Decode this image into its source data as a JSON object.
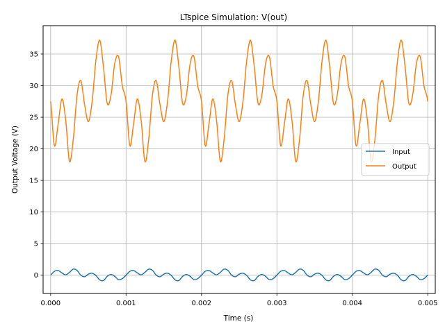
{
  "chart_data": {
    "type": "line",
    "title": "LTspice Simulation: V(out)",
    "xlabel": "Time (s)",
    "ylabel": "Output Voltage (V)",
    "xlim": [
      -0.0001,
      0.0051
    ],
    "ylim": [
      -2.9,
      39.5
    ],
    "xticks": [
      0.0,
      0.001,
      0.002,
      0.003,
      0.004,
      0.005
    ],
    "xtick_labels": [
      "0.000",
      "0.001",
      "0.002",
      "0.003",
      "0.004",
      "0.005"
    ],
    "yticks": [
      0,
      5,
      10,
      15,
      20,
      25,
      30,
      35
    ],
    "ytick_labels": [
      "0",
      "5",
      "10",
      "15",
      "20",
      "25",
      "30",
      "35"
    ],
    "grid": true,
    "legend_position": "center-right",
    "series": [
      {
        "name": "Input",
        "color": "#1f77b4",
        "x": [
          0.0,
          5e-05,
          0.0001,
          0.00015,
          0.0002,
          0.00025,
          0.0003,
          0.00035,
          0.0004,
          0.00045,
          0.0005,
          0.00055,
          0.0006,
          0.00065,
          0.0007,
          0.00075,
          0.0008,
          0.00085,
          0.0009,
          0.00095,
          0.001
        ],
        "values": [
          0.0,
          0.6,
          0.72,
          0.35,
          0.05,
          0.45,
          0.95,
          0.75,
          0.0,
          -0.25,
          0.15,
          0.3,
          -0.05,
          -0.75,
          -0.85,
          -0.2,
          0.1,
          -0.2,
          -0.7,
          -0.55,
          0.0
        ]
      },
      {
        "name": "Output",
        "color": "#ff7f0e",
        "x": [
          0.0,
          5e-05,
          0.0001,
          0.00015,
          0.0002,
          0.00025,
          0.0003,
          0.00035,
          0.0004,
          0.00045,
          0.0005,
          0.00055,
          0.0006,
          0.00065,
          0.0007,
          0.00075,
          0.0008,
          0.00085,
          0.0009,
          0.00095,
          0.001
        ],
        "values": [
          27.5,
          20.5,
          24.0,
          27.9,
          24.5,
          18.0,
          21.5,
          28.5,
          30.8,
          27.0,
          24.3,
          27.5,
          34.0,
          37.2,
          33.0,
          27.2,
          28.5,
          33.5,
          34.6,
          30.0,
          27.5
        ]
      }
    ],
    "period": 0.001
  }
}
